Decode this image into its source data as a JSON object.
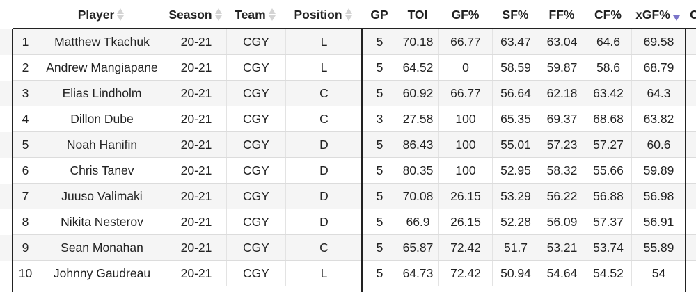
{
  "columns": [
    {
      "label": "",
      "key": "rank"
    },
    {
      "label": "Player",
      "key": "player"
    },
    {
      "label": "Season",
      "key": "season"
    },
    {
      "label": "Team",
      "key": "team"
    },
    {
      "label": "Position",
      "key": "position"
    },
    {
      "label": "GP",
      "key": "gp"
    },
    {
      "label": "TOI",
      "key": "toi"
    },
    {
      "label": "GF%",
      "key": "gf"
    },
    {
      "label": "SF%",
      "key": "sf"
    },
    {
      "label": "FF%",
      "key": "ff"
    },
    {
      "label": "CF%",
      "key": "cf"
    },
    {
      "label": "xGF%",
      "key": "xgf"
    },
    {
      "label": "C",
      "key": "next"
    }
  ],
  "sort": {
    "column": "xgf",
    "direction": "desc",
    "active_color": "#7b74c9"
  },
  "rows": [
    {
      "rank": "1",
      "player": "Matthew Tkachuk",
      "season": "20-21",
      "team": "CGY",
      "position": "L",
      "gp": "5",
      "toi": "70.18",
      "gf": "66.77",
      "sf": "63.47",
      "ff": "63.04",
      "cf": "64.6",
      "xgf": "69.58"
    },
    {
      "rank": "2",
      "player": "Andrew Mangiapane",
      "season": "20-21",
      "team": "CGY",
      "position": "L",
      "gp": "5",
      "toi": "64.52",
      "gf": "0",
      "sf": "58.59",
      "ff": "59.87",
      "cf": "58.6",
      "xgf": "68.79"
    },
    {
      "rank": "3",
      "player": "Elias Lindholm",
      "season": "20-21",
      "team": "CGY",
      "position": "C",
      "gp": "5",
      "toi": "60.92",
      "gf": "66.77",
      "sf": "56.64",
      "ff": "62.18",
      "cf": "63.42",
      "xgf": "64.3"
    },
    {
      "rank": "4",
      "player": "Dillon Dube",
      "season": "20-21",
      "team": "CGY",
      "position": "C",
      "gp": "3",
      "toi": "27.58",
      "gf": "100",
      "sf": "65.35",
      "ff": "69.37",
      "cf": "68.68",
      "xgf": "63.82"
    },
    {
      "rank": "5",
      "player": "Noah Hanifin",
      "season": "20-21",
      "team": "CGY",
      "position": "D",
      "gp": "5",
      "toi": "86.43",
      "gf": "100",
      "sf": "55.01",
      "ff": "57.23",
      "cf": "57.27",
      "xgf": "60.6"
    },
    {
      "rank": "6",
      "player": "Chris Tanev",
      "season": "20-21",
      "team": "CGY",
      "position": "D",
      "gp": "5",
      "toi": "80.35",
      "gf": "100",
      "sf": "52.95",
      "ff": "58.32",
      "cf": "55.66",
      "xgf": "59.89"
    },
    {
      "rank": "7",
      "player": "Juuso Valimaki",
      "season": "20-21",
      "team": "CGY",
      "position": "D",
      "gp": "5",
      "toi": "70.08",
      "gf": "26.15",
      "sf": "53.29",
      "ff": "56.22",
      "cf": "56.88",
      "xgf": "56.98"
    },
    {
      "rank": "8",
      "player": "Nikita Nesterov",
      "season": "20-21",
      "team": "CGY",
      "position": "D",
      "gp": "5",
      "toi": "66.9",
      "gf": "26.15",
      "sf": "52.28",
      "ff": "56.09",
      "cf": "57.37",
      "xgf": "56.91"
    },
    {
      "rank": "9",
      "player": "Sean Monahan",
      "season": "20-21",
      "team": "CGY",
      "position": "C",
      "gp": "5",
      "toi": "65.87",
      "gf": "72.42",
      "sf": "51.7",
      "ff": "53.21",
      "cf": "53.74",
      "xgf": "55.89"
    },
    {
      "rank": "10",
      "player": "Johnny Gaudreau",
      "season": "20-21",
      "team": "CGY",
      "position": "L",
      "gp": "5",
      "toi": "64.73",
      "gf": "72.42",
      "sf": "50.94",
      "ff": "54.64",
      "cf": "54.52",
      "xgf": "54"
    }
  ]
}
